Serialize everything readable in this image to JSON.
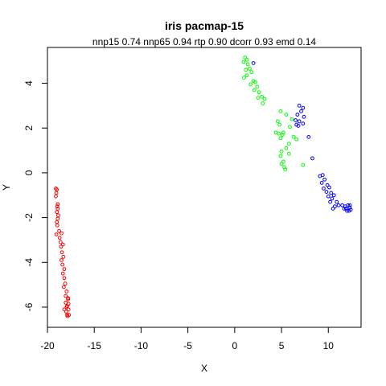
{
  "chart_data": {
    "type": "scatter",
    "title": "iris pacmap-15",
    "subtitle": "nnp15 0.74 nnp65 0.94 rtp 0.90 dcorr 0.93 emd 0.14",
    "xlabel": "X",
    "ylabel": "Y",
    "xlim": [
      -20,
      13.5
    ],
    "ylim": [
      -6.9,
      5.6
    ],
    "xticks": [
      -20,
      -15,
      -10,
      -5,
      0,
      5,
      10
    ],
    "yticks": [
      -6,
      -4,
      -2,
      0,
      2,
      4
    ],
    "grid": false,
    "series": [
      {
        "color": "#ff0000",
        "points": [
          [
            -19.1,
            -0.7
          ],
          [
            -19.0,
            -0.75
          ],
          [
            -19.05,
            -0.9
          ],
          [
            -19.1,
            -1.05
          ],
          [
            -18.9,
            -1.4
          ],
          [
            -18.95,
            -1.5
          ],
          [
            -18.9,
            -1.6
          ],
          [
            -19.0,
            -1.75
          ],
          [
            -18.85,
            -1.9
          ],
          [
            -18.9,
            -2.05
          ],
          [
            -19.0,
            -2.2
          ],
          [
            -18.95,
            -2.35
          ],
          [
            -18.75,
            -2.6
          ],
          [
            -19.05,
            -2.75
          ],
          [
            -18.7,
            -2.9
          ],
          [
            -18.5,
            -2.7
          ],
          [
            -18.6,
            -3.1
          ],
          [
            -18.35,
            -3.2
          ],
          [
            -18.55,
            -3.3
          ],
          [
            -18.45,
            -3.55
          ],
          [
            -18.3,
            -3.75
          ],
          [
            -18.5,
            -3.9
          ],
          [
            -18.4,
            -4.1
          ],
          [
            -18.2,
            -4.3
          ],
          [
            -18.35,
            -4.5
          ],
          [
            -18.2,
            -4.7
          ],
          [
            -18.1,
            -4.95
          ],
          [
            -18.25,
            -5.1
          ],
          [
            -17.95,
            -5.3
          ],
          [
            -18.05,
            -5.5
          ],
          [
            -17.8,
            -5.6
          ],
          [
            -18.05,
            -5.8
          ],
          [
            -17.9,
            -5.95
          ],
          [
            -18.2,
            -6.1
          ],
          [
            -17.75,
            -5.85
          ],
          [
            -17.8,
            -5.65
          ],
          [
            -18.0,
            -6.2
          ],
          [
            -17.9,
            -6.35
          ],
          [
            -17.7,
            -6.35
          ],
          [
            -17.85,
            -6.4
          ],
          [
            -17.75,
            -6.1
          ],
          [
            -17.95,
            -6.0
          ]
        ]
      },
      {
        "color": "#00ff00",
        "points": [
          [
            1.1,
            5.15
          ],
          [
            1.3,
            5.05
          ],
          [
            0.95,
            4.95
          ],
          [
            1.4,
            4.85
          ],
          [
            1.6,
            4.65
          ],
          [
            1.2,
            4.6
          ],
          [
            1.8,
            4.5
          ],
          [
            1.3,
            4.35
          ],
          [
            1.0,
            4.25
          ],
          [
            2.0,
            4.1
          ],
          [
            2.2,
            4.05
          ],
          [
            1.7,
            3.95
          ],
          [
            2.4,
            3.85
          ],
          [
            2.1,
            3.7
          ],
          [
            2.6,
            3.6
          ],
          [
            2.9,
            3.4
          ],
          [
            2.5,
            3.35
          ],
          [
            3.2,
            3.3
          ],
          [
            3.0,
            3.1
          ],
          [
            4.9,
            2.75
          ],
          [
            5.5,
            2.6
          ],
          [
            6.1,
            2.4
          ],
          [
            4.6,
            2.3
          ],
          [
            4.8,
            2.15
          ],
          [
            5.9,
            2.05
          ],
          [
            4.4,
            1.8
          ],
          [
            4.7,
            1.75
          ],
          [
            5.2,
            1.8
          ],
          [
            6.3,
            1.6
          ],
          [
            5.1,
            1.7
          ],
          [
            4.9,
            1.55
          ],
          [
            5.8,
            1.3
          ],
          [
            5.5,
            1.1
          ],
          [
            5.0,
            0.95
          ],
          [
            5.8,
            0.85
          ],
          [
            4.9,
            0.75
          ],
          [
            5.2,
            0.5
          ],
          [
            5.3,
            0.25
          ],
          [
            5.0,
            0.4
          ],
          [
            7.3,
            0.35
          ],
          [
            6.6,
            1.5
          ],
          [
            5.4,
            0.15
          ]
        ]
      },
      {
        "color": "#0000ff",
        "points": [
          [
            2.0,
            4.9
          ],
          [
            6.9,
            3.0
          ],
          [
            7.3,
            2.9
          ],
          [
            7.1,
            2.75
          ],
          [
            6.7,
            2.6
          ],
          [
            7.4,
            2.5
          ],
          [
            6.5,
            2.35
          ],
          [
            6.9,
            2.3
          ],
          [
            7.3,
            2.2
          ],
          [
            6.6,
            2.15
          ],
          [
            6.8,
            2.1
          ],
          [
            7.9,
            1.6
          ],
          [
            8.3,
            0.65
          ],
          [
            9.1,
            -0.15
          ],
          [
            9.4,
            -0.1
          ],
          [
            9.6,
            -0.3
          ],
          [
            9.3,
            -0.45
          ],
          [
            9.9,
            -0.55
          ],
          [
            9.5,
            -0.7
          ],
          [
            10.1,
            -0.65
          ],
          [
            9.8,
            -0.85
          ],
          [
            10.3,
            -0.9
          ],
          [
            10.0,
            -1.05
          ],
          [
            10.4,
            -1.15
          ],
          [
            10.6,
            -1.0
          ],
          [
            10.2,
            -1.3
          ],
          [
            10.9,
            -1.3
          ],
          [
            11.1,
            -1.45
          ],
          [
            10.7,
            -1.5
          ],
          [
            11.5,
            -1.45
          ],
          [
            11.8,
            -1.5
          ],
          [
            12.1,
            -1.45
          ],
          [
            12.3,
            -1.55
          ],
          [
            11.9,
            -1.6
          ],
          [
            12.2,
            -1.7
          ],
          [
            12.4,
            -1.65
          ],
          [
            12.0,
            -1.7
          ],
          [
            11.7,
            -1.6
          ],
          [
            12.3,
            -1.45
          ],
          [
            10.5,
            -1.6
          ]
        ]
      }
    ]
  }
}
